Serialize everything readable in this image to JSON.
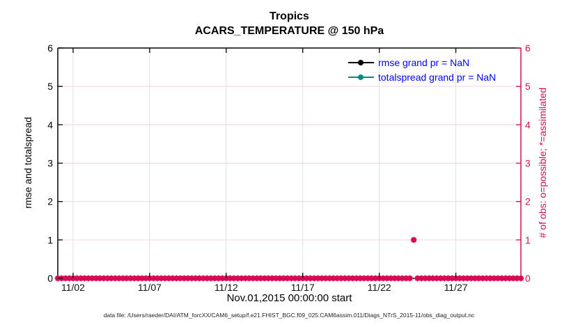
{
  "title": {
    "line1": "Tropics",
    "line2": "ACARS_TEMPERATURE @ 150 hPa"
  },
  "legend": {
    "text_color": "#0000FF",
    "items": [
      {
        "label": "rmse grand pr = NaN",
        "color": "#000000"
      },
      {
        "label": "totalspread grand pr = NaN",
        "color": "#008B8B"
      }
    ]
  },
  "axes": {
    "left": {
      "label": "rmse and totalspread",
      "color": "#000000",
      "ticks": [
        "0",
        "1",
        "2",
        "3",
        "4",
        "5",
        "6"
      ],
      "range": [
        0,
        6
      ]
    },
    "right": {
      "label": "# of obs: o=possible; *=assimilated",
      "color": "#D70A53",
      "ticks": [
        "0",
        "1",
        "2",
        "3",
        "4",
        "5",
        "6"
      ],
      "range": [
        0,
        6
      ]
    },
    "x": {
      "label": "Nov.01,2015 00:00:00 start",
      "ticks": [
        {
          "day": 1,
          "label": "11/02"
        },
        {
          "day": 6,
          "label": "11/07"
        },
        {
          "day": 11,
          "label": "11/12"
        },
        {
          "day": 16,
          "label": "11/17"
        },
        {
          "day": 21,
          "label": "11/22"
        },
        {
          "day": 26,
          "label": "11/27"
        }
      ],
      "range_days": [
        0,
        30.25
      ]
    }
  },
  "caption": "data file: /Users/raeder/DAI/ATM_forcXX/CAM6_setup/f.e21.FHIST_BGC.f09_025.CAM6assim.011/Diags_NTrS_2015-11/obs_diag_output.nc",
  "colors": {
    "obs_crimson": "#D70A53",
    "spread_teal": "#008B8B",
    "legend_blue": "#0000FF",
    "grid_vertical": "#E0E0E0",
    "grid_horizontal": "#F6D2DE",
    "spine_black": "#000000"
  },
  "chart_data": {
    "type": "scatter",
    "title": "Tropics",
    "subtitle": "ACARS_TEMPERATURE @ 150 hPa",
    "xlabel": "Nov.01,2015 00:00:00 start",
    "ylabel_left": "rmse and totalspread",
    "ylabel_right": "# of obs: o=possible; *=assimilated",
    "xlim_days": [
      0,
      30.25
    ],
    "ylim_left": [
      0,
      6
    ],
    "ylim_right": [
      0,
      6
    ],
    "grid": true,
    "series": [
      {
        "name": "rmse",
        "legend": "rmse grand pr = NaN",
        "color": "#000000",
        "axis": "left",
        "values_note": "all NaN - no points plotted"
      },
      {
        "name": "totalspread",
        "legend": "totalspread grand pr = NaN",
        "color": "#008B8B",
        "axis": "left",
        "values_note": "all NaN - no points plotted"
      },
      {
        "name": "obs_possible",
        "marker": "o",
        "color": "#D70A53",
        "axis": "right"
      },
      {
        "name": "obs_assimilated",
        "marker": "*",
        "color": "#D70A53",
        "axis": "right"
      }
    ],
    "obs_counts": {
      "start_date": "2015-11-01 00:00",
      "interval_days": 0.25,
      "count": 122,
      "default_value": 0,
      "exceptions": [
        {
          "index": 93,
          "approx_date": "2015-11-24 06:00",
          "possible": 1,
          "assimilated": 1
        }
      ]
    }
  }
}
